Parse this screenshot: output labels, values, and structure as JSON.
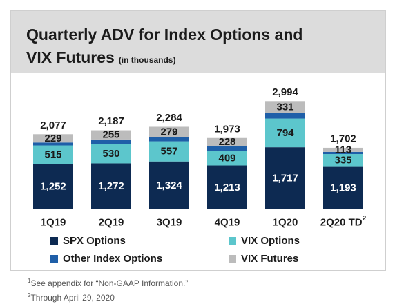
{
  "title_line1": "Quarterly ADV for Index Options and",
  "title_line2": "VIX Futures",
  "title_unit": "(in thousands)",
  "chart_data": {
    "type": "bar",
    "stacked": true,
    "categories": [
      "1Q19",
      "2Q19",
      "3Q19",
      "4Q19",
      "1Q20",
      "2Q20 TD"
    ],
    "category_superscripts": [
      "",
      "",
      "",
      "",
      "",
      "2"
    ],
    "series": [
      {
        "name": "SPX Options",
        "color": "#0d2a52",
        "label_color": "#ffffff",
        "values": [
          1252,
          1272,
          1324,
          1213,
          1717,
          1193
        ]
      },
      {
        "name": "VIX Options",
        "color": "#5cc6cc",
        "label_color": "#1b1b1b",
        "values": [
          515,
          530,
          557,
          409,
          794,
          335
        ]
      },
      {
        "name": "Other Index Options",
        "color": "#1f5fa8",
        "label_color": "#1b1b1b",
        "values": [
          81,
          130,
          124,
          123,
          152,
          61
        ]
      },
      {
        "name": "VIX Futures",
        "color": "#bcbcbc",
        "label_color": "#1b1b1b",
        "values": [
          229,
          255,
          279,
          228,
          331,
          113
        ]
      }
    ],
    "labeled_series": [
      "SPX Options",
      "VIX Options",
      "VIX Futures"
    ],
    "totals": [
      2077,
      2187,
      2284,
      1973,
      2994,
      1702
    ],
    "ylim": [
      0,
      3000
    ],
    "grid": false,
    "legend_position": "bottom"
  },
  "legend": [
    {
      "label": "SPX Options",
      "color": "#0d2a52"
    },
    {
      "label": "VIX Options",
      "color": "#5cc6cc"
    },
    {
      "label": "Other Index Options",
      "color": "#1f5fa8"
    },
    {
      "label": "VIX Futures",
      "color": "#bcbcbc"
    }
  ],
  "footnotes": {
    "note1_mark": "1",
    "note1_text": "See appendix for “Non-GAAP Information.”",
    "note2_mark": "2",
    "note2_text": "Through April 29, 2020"
  }
}
